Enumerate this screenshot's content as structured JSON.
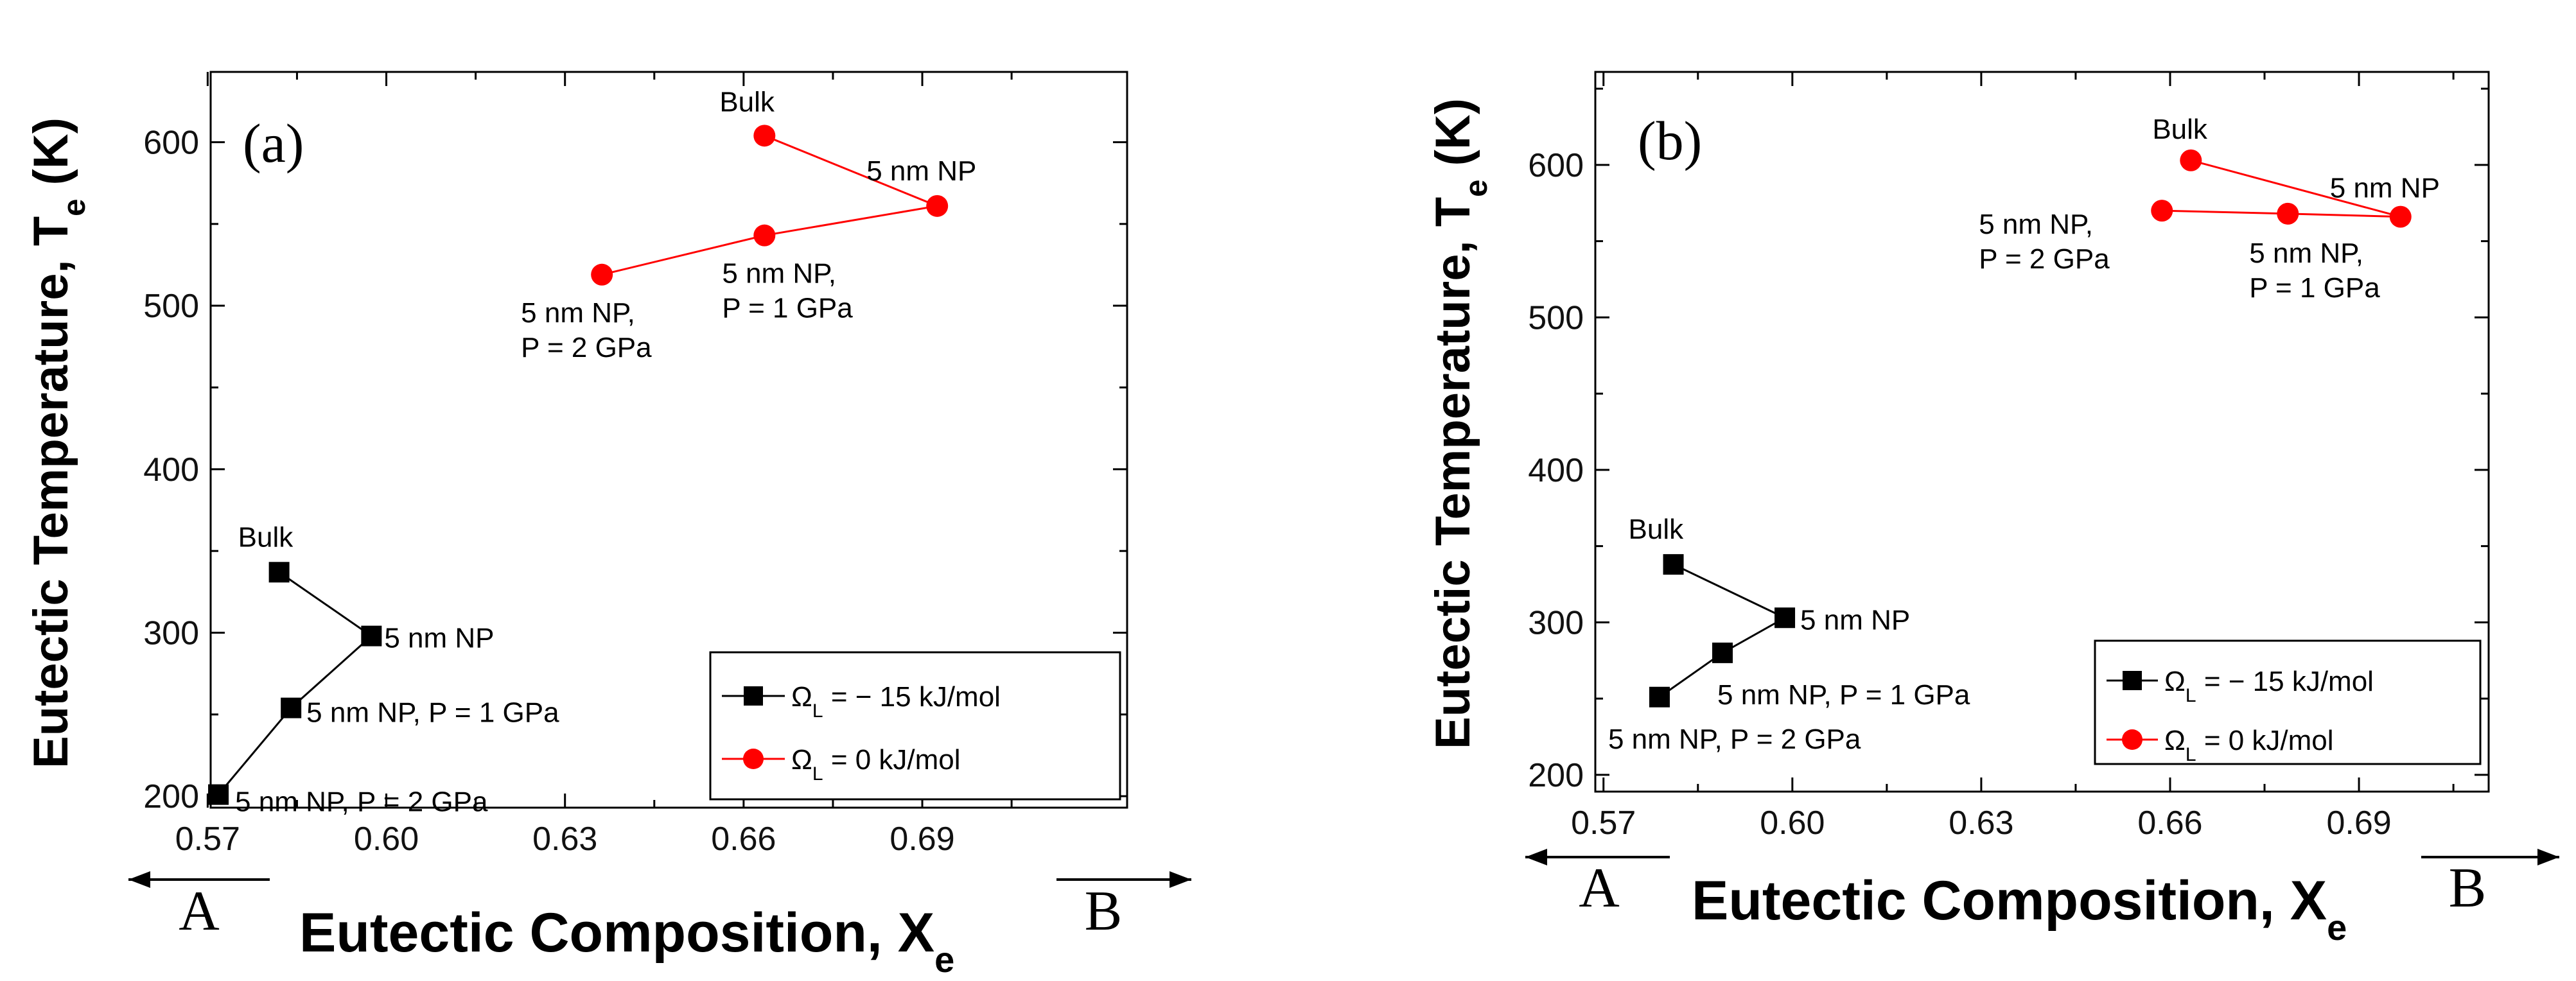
{
  "chart_data": [
    {
      "type": "line",
      "panel_label": "(a)",
      "xlabel": "Eutectic Composition, X",
      "xlabel_sub": "e",
      "ylabel": "Eutectic Temperature, T",
      "ylabel_sub": "e",
      "ylabel_unit": " (K)",
      "xlim": [
        0.5705,
        0.7244
      ],
      "ylim": [
        193,
        643
      ],
      "xticks": [
        "0.57",
        "0.60",
        "0.63",
        "0.66",
        "0.69"
      ],
      "yticks": [
        "200",
        "300",
        "400",
        "500",
        "600"
      ],
      "arrow_left_label": "A",
      "arrow_right_label": "B",
      "legend": {
        "placement": "bottom-right"
      },
      "series": [
        {
          "name": "ΩL = − 15 kJ/mol",
          "name_main": "Ω",
          "name_sub": "L",
          "name_rest": " = − 15 kJ/mol",
          "color": "#000000",
          "marker": "square",
          "points": [
            {
              "x": 0.582,
              "y": 337,
              "label": [
                "Bulk"
              ]
            },
            {
              "x": 0.5975,
              "y": 298,
              "label": [
                "5 nm NP"
              ]
            },
            {
              "x": 0.584,
              "y": 254,
              "label": [
                "5 nm NP, P = 1 GPa"
              ]
            },
            {
              "x": 0.5718,
              "y": 201,
              "label": [
                "5 nm NP, P = 2 GPa"
              ]
            }
          ]
        },
        {
          "name": "ΩL = 0 kJ/mol",
          "name_main": "Ω",
          "name_sub": "L",
          "name_rest": " = 0 kJ/mol",
          "color": "#ff0000",
          "marker": "circle",
          "points": [
            {
              "x": 0.6635,
              "y": 604,
              "label": [
                "Bulk"
              ]
            },
            {
              "x": 0.6925,
              "y": 561,
              "label": [
                "5 nm NP"
              ]
            },
            {
              "x": 0.6635,
              "y": 543,
              "label": [
                "5 nm NP,",
                "P = 1 GPa"
              ]
            },
            {
              "x": 0.6362,
              "y": 519,
              "label": [
                "5 nm NP,",
                "P = 2 GPa"
              ]
            }
          ]
        }
      ]
    },
    {
      "type": "line",
      "panel_label": "(b)",
      "xlabel": "Eutectic Composition, X",
      "xlabel_sub": "e",
      "ylabel": "Eutectic Temperature, T",
      "ylabel_sub": "e",
      "ylabel_unit": " (K)",
      "xlim": [
        0.5687,
        0.7106
      ],
      "ylim": [
        189,
        661
      ],
      "xticks": [
        "0.57",
        "0.60",
        "0.63",
        "0.66",
        "0.69"
      ],
      "yticks": [
        "200",
        "300",
        "400",
        "500",
        "600"
      ],
      "arrow_left_label": "A",
      "arrow_right_label": "B",
      "legend": {
        "placement": "bottom-right"
      },
      "series": [
        {
          "name": "ΩL = − 15 kJ/mol",
          "name_main": "Ω",
          "name_sub": "L",
          "name_rest": " = − 15 kJ/mol",
          "color": "#000000",
          "marker": "square",
          "points": [
            {
              "x": 0.5811,
              "y": 338,
              "label": [
                "Bulk"
              ]
            },
            {
              "x": 0.5988,
              "y": 303,
              "label": [
                "5 nm NP"
              ]
            },
            {
              "x": 0.5889,
              "y": 280,
              "label": [
                "5 nm NP, P = 1 GPa"
              ]
            },
            {
              "x": 0.5789,
              "y": 251,
              "label": [
                "5 nm NP, P = 2 GPa"
              ]
            }
          ]
        },
        {
          "name": "ΩL = 0 kJ/mol",
          "name_main": "Ω",
          "name_sub": "L",
          "name_rest": " = 0 kJ/mol",
          "color": "#ff0000",
          "marker": "circle",
          "points": [
            {
              "x": 0.6633,
              "y": 603,
              "label": [
                "Bulk"
              ]
            },
            {
              "x": 0.6966,
              "y": 566,
              "label": [
                "5 nm NP"
              ]
            },
            {
              "x": 0.6787,
              "y": 568,
              "label": [
                "5 nm NP,",
                "P = 1 GPa"
              ]
            },
            {
              "x": 0.6587,
              "y": 570,
              "label": [
                "5 nm NP,",
                "P = 2 GPa"
              ]
            }
          ]
        }
      ]
    }
  ]
}
